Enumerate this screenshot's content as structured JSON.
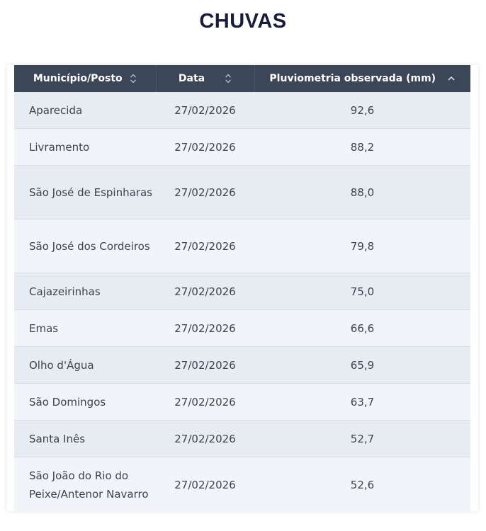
{
  "page": {
    "title": "CHUVAS"
  },
  "table": {
    "headers": [
      {
        "label": "Município/Posto",
        "sort": "none"
      },
      {
        "label": "Data",
        "sort": "none"
      },
      {
        "label": "Pluviometria observada (mm)",
        "sort": "ascending"
      }
    ],
    "rows": [
      {
        "municipio": "Aparecida",
        "data": "27/02/2026",
        "valor": "92,6"
      },
      {
        "municipio": "Livramento",
        "data": "27/02/2026",
        "valor": "88,2"
      },
      {
        "municipio": "São José de Espinharas",
        "data": "27/02/2026",
        "valor": "88,0"
      },
      {
        "municipio": "São José dos Cordeiros",
        "data": "27/02/2026",
        "valor": "79,8"
      },
      {
        "municipio": "Cajazeirinhas",
        "data": "27/02/2026",
        "valor": "75,0"
      },
      {
        "municipio": "Emas",
        "data": "27/02/2026",
        "valor": "66,6"
      },
      {
        "municipio": "Olho d'Água",
        "data": "27/02/2026",
        "valor": "65,9"
      },
      {
        "municipio": "São Domingos",
        "data": "27/02/2026",
        "valor": "63,7"
      },
      {
        "municipio": "Santa Inês",
        "data": "27/02/2026",
        "valor": "52,7"
      },
      {
        "municipio": "São João do Rio do Peixe/Antenor Navarro",
        "data": "27/02/2026",
        "valor": "52,6"
      }
    ]
  },
  "icons": {
    "sort_none": "sort-both-icon",
    "sort_ascending": "sort-up-icon"
  }
}
